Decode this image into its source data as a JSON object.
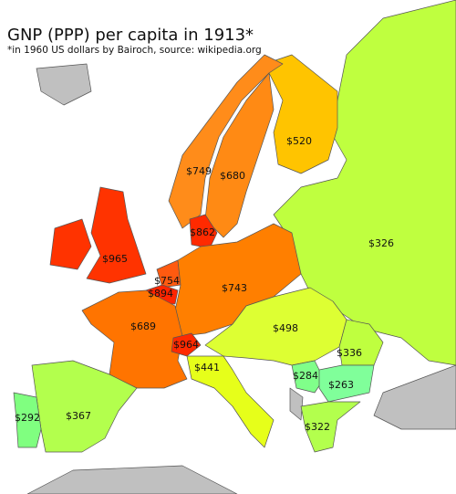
{
  "title": "GNP (PPP) per capita in 1913*",
  "subtitle": "*in 1960 US dollars by Bairoch, source: wikipedia.org",
  "regions": [
    {
      "label": "$520"
    },
    {
      "label": "$749"
    },
    {
      "label": "$680"
    },
    {
      "label": "$862"
    },
    {
      "label": "$326"
    },
    {
      "label": "$965"
    },
    {
      "label": "$754"
    },
    {
      "label": "$894"
    },
    {
      "label": "$743"
    },
    {
      "label": "$689"
    },
    {
      "label": "$498"
    },
    {
      "label": "$964"
    },
    {
      "label": "$441"
    },
    {
      "label": "$336"
    },
    {
      "label": "$284"
    },
    {
      "label": "$263"
    },
    {
      "label": "$292"
    },
    {
      "label": "$367"
    },
    {
      "label": "$322"
    }
  ]
}
